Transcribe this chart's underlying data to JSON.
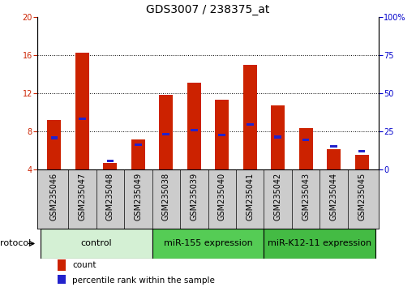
{
  "title": "GDS3007 / 238375_at",
  "samples": [
    "GSM235046",
    "GSM235047",
    "GSM235048",
    "GSM235049",
    "GSM235038",
    "GSM235039",
    "GSM235040",
    "GSM235041",
    "GSM235042",
    "GSM235043",
    "GSM235044",
    "GSM235045"
  ],
  "count_values": [
    9.2,
    16.3,
    4.7,
    7.1,
    11.8,
    13.1,
    11.3,
    15.0,
    10.7,
    8.3,
    6.1,
    5.5
  ],
  "percentile_values": [
    7.3,
    9.3,
    4.9,
    6.6,
    7.7,
    8.1,
    7.6,
    8.7,
    7.4,
    7.1,
    6.4,
    5.9
  ],
  "ylim_left": [
    4,
    20
  ],
  "ylim_right": [
    0,
    100
  ],
  "yticks_left": [
    4,
    8,
    12,
    16,
    20
  ],
  "yticks_right": [
    0,
    25,
    50,
    75,
    100
  ],
  "ytick_labels_right": [
    "0",
    "25",
    "50",
    "75",
    "100%"
  ],
  "bar_color": "#cc2200",
  "pct_color": "#2222cc",
  "groups": [
    {
      "label": "control",
      "start": 0,
      "end": 4,
      "color": "#d4f0d4"
    },
    {
      "label": "miR-155 expression",
      "start": 4,
      "end": 8,
      "color": "#55cc55"
    },
    {
      "label": "miR-K12-11 expression",
      "start": 8,
      "end": 12,
      "color": "#44bb44"
    }
  ],
  "protocol_label": "protocol",
  "legend_items": [
    {
      "label": "count",
      "color": "#cc2200"
    },
    {
      "label": "percentile rank within the sample",
      "color": "#2222cc"
    }
  ],
  "bar_width": 0.5,
  "pct_bar_width": 0.25,
  "pct_bar_height": 0.28,
  "title_fontsize": 10,
  "tick_fontsize": 7,
  "group_fontsize": 8,
  "legend_fontsize": 7.5
}
